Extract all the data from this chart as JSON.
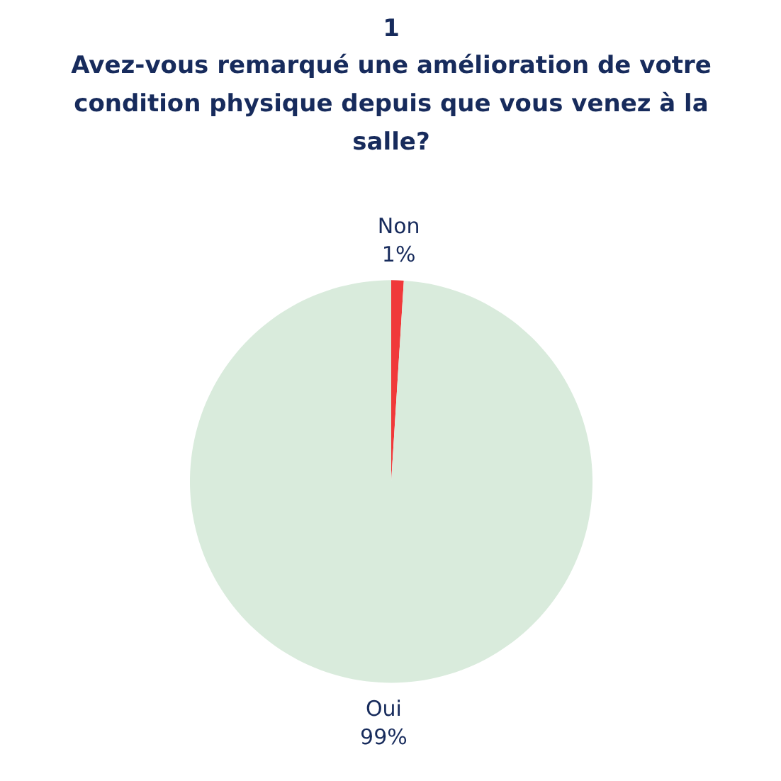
{
  "chart_data": {
    "type": "pie",
    "title": "1",
    "subtitle": "Avez-vous remarqué une amélioration de votre condition physique depuis que vous venez à la salle?",
    "categories": [
      "Non",
      "Oui"
    ],
    "values": [
      1,
      99
    ],
    "colors": [
      "#f0393a",
      "#d9ebdc"
    ],
    "value_labels": [
      "1%",
      "99%"
    ]
  }
}
